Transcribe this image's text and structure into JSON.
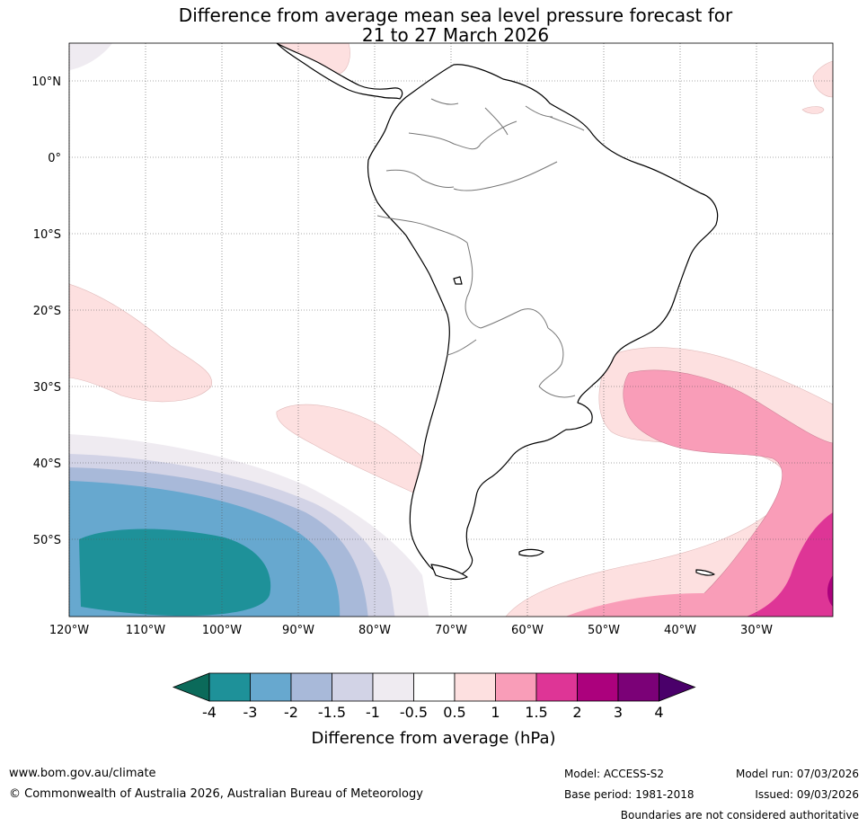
{
  "title": {
    "line1": "Difference from average mean sea level pressure forecast for",
    "line2": "21 to 27 March 2026"
  },
  "axes": {
    "lat_labels": [
      "10°N",
      "0°",
      "10°S",
      "20°S",
      "30°S",
      "40°S",
      "50°S"
    ],
    "lon_labels": [
      "120°W",
      "110°W",
      "100°W",
      "90°W",
      "80°W",
      "70°W",
      "60°W",
      "50°W",
      "40°W",
      "30°W"
    ]
  },
  "colorbar": {
    "label": "Difference from average (hPa)",
    "ticks": [
      "-4",
      "-3",
      "-2",
      "-1.5",
      "-1",
      "-0.5",
      "0.5",
      "1",
      "1.5",
      "2",
      "3",
      "4"
    ],
    "colors": {
      "below_min": "#0b6a5a",
      "lt_-3": "#1e9199",
      "lt_-2": "#67a8cf",
      "lt_-1.5": "#a8b9d9",
      "lt_-1": "#d2d3e6",
      "lt_-0.5": "#efebf1",
      "neutral": "#ffffff",
      "gt_0.5": "#fde0e0",
      "gt_1": "#f99db8",
      "gt_1.5": "#de3596",
      "gt_2": "#ac017d",
      "gt_3": "#7b0177",
      "above_max": "#4a006a"
    }
  },
  "footer": {
    "website": "www.bom.gov.au/climate",
    "copyright": "© Commonwealth of Australia 2026, Australian Bureau of Meteorology",
    "model": "Model: ACCESS-S2",
    "base_period": "Base period: 1981-2018",
    "model_run": "Model run: 07/03/2026",
    "issued": "Issued: 09/03/2026",
    "disclaimer": "Boundaries are not considered authoritative"
  }
}
